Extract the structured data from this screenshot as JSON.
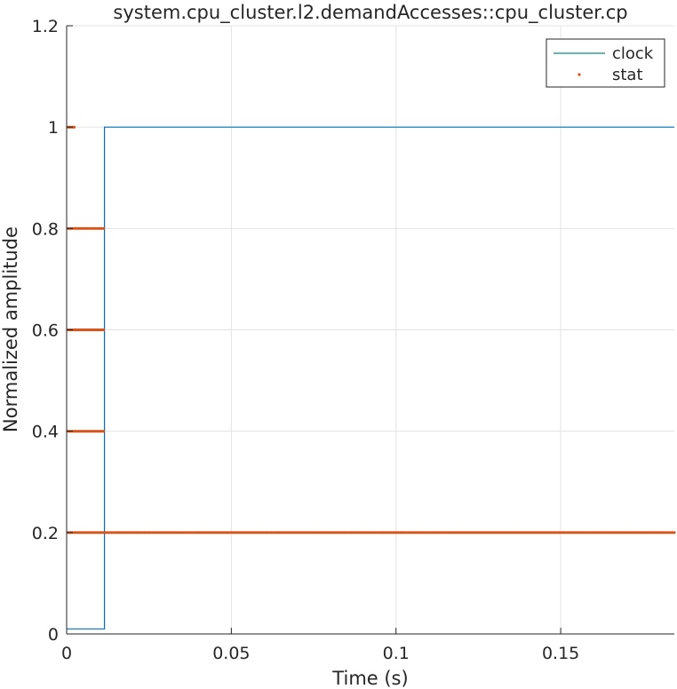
{
  "chart_data": {
    "type": "line",
    "title": "system.cpu_cluster.l2.demandAccesses::cpu_cluster.cp",
    "xlabel": "Time (s)",
    "ylabel": "Normalized amplitude",
    "xlim": [
      0,
      0.1845
    ],
    "ylim": [
      0,
      1.2
    ],
    "xticks": [
      0,
      0.05,
      0.1,
      0.15
    ],
    "xtick_labels": [
      "0",
      "0.05",
      "0.1",
      "0.15"
    ],
    "yticks": [
      0,
      0.2,
      0.4,
      0.6,
      0.8,
      1,
      1.2
    ],
    "ytick_labels": [
      "0",
      "0.2",
      "0.4",
      "0.6",
      "0.8",
      "1",
      "1.2"
    ],
    "grid": true,
    "legend_position": "top-right",
    "colors": {
      "clock": "#0072bd",
      "stat": "#d95319",
      "legend_clock_line": "#0e8a80",
      "axis": "#262626",
      "grid": "#e3e3e3"
    },
    "series": [
      {
        "name": "clock",
        "style": "line",
        "x": [
          0,
          0.0115,
          0.0115,
          0.1845
        ],
        "y": [
          0.01,
          0.01,
          1,
          1
        ]
      },
      {
        "name": "stat",
        "style": "dots",
        "segments": [
          {
            "y": 1.0,
            "x_start": 0.0005,
            "x_end": 0.0028
          },
          {
            "y": 0.8,
            "x_start": 0.0005,
            "x_end": 0.0115
          },
          {
            "y": 0.6,
            "x_start": 0.0005,
            "x_end": 0.0115
          },
          {
            "y": 0.4,
            "x_start": 0.0005,
            "x_end": 0.0115
          },
          {
            "y": 0.2,
            "x_start": 0.0005,
            "x_end": 0.1845
          }
        ]
      }
    ]
  }
}
